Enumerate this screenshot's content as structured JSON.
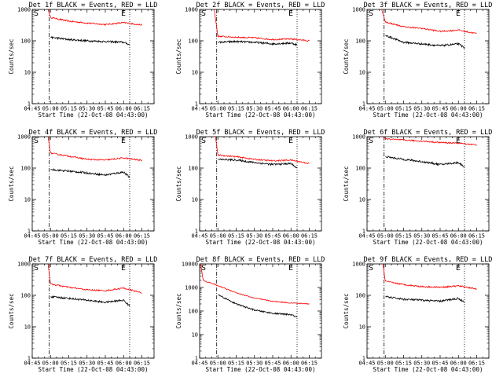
{
  "figure": {
    "colors": {
      "events": "#000000",
      "lld": "#ff0000",
      "axes": "#000000",
      "background": "#ffffff"
    }
  },
  "chart_data": [
    {
      "type": "line",
      "title": "Det 1f BLACK = Events, RED = LLD",
      "xlabel": "Start Time (22-Oct-08 04:43:00)",
      "ylabel": "Counts/sec",
      "ylim": [
        1,
        1000
      ],
      "y_scale": "log",
      "x_ticks": [
        "04:45",
        "05:00",
        "05:15",
        "05:30",
        "05:45",
        "06:00",
        "06:15"
      ],
      "y_ticks": [
        "1",
        "10",
        "100",
        "1000"
      ],
      "markers": {
        "start": "S",
        "end": "E",
        "start_time": "04:59",
        "end_time": "06:05"
      },
      "series": [
        {
          "name": "LLD",
          "color": "#ff0000",
          "x": [
            "04:58",
            "05:00",
            "05:15",
            "05:30",
            "05:45",
            "06:00",
            "06:15"
          ],
          "values": [
            1000,
            560,
            420,
            370,
            330,
            380,
            320
          ]
        },
        {
          "name": "Events",
          "color": "#000000",
          "x": [
            "05:00",
            "05:15",
            "05:30",
            "05:45",
            "06:00",
            "06:05"
          ],
          "values": [
            130,
            110,
            100,
            95,
            90,
            75
          ]
        }
      ]
    },
    {
      "type": "line",
      "title": "Det 2f BLACK = Events, RED = LLD",
      "xlabel": "Start Time (22-Oct-08 04:43:00)",
      "ylabel": "Counts/sec",
      "ylim": [
        1,
        1000
      ],
      "y_scale": "log",
      "x_ticks": [
        "04:45",
        "05:00",
        "05:15",
        "05:30",
        "05:45",
        "06:00",
        "06:15"
      ],
      "y_ticks": [
        "1",
        "10",
        "100",
        "1000"
      ],
      "markers": {
        "start": "S",
        "end": "E",
        "start_time": "04:59",
        "end_time": "06:05"
      },
      "series": [
        {
          "name": "LLD",
          "color": "#ff0000",
          "x": [
            "04:57",
            "05:00",
            "05:15",
            "05:30",
            "05:45",
            "06:00",
            "06:15"
          ],
          "values": [
            1000,
            140,
            130,
            125,
            110,
            115,
            100
          ]
        },
        {
          "name": "Events",
          "color": "#000000",
          "x": [
            "05:00",
            "05:15",
            "05:30",
            "05:45",
            "06:00",
            "06:05"
          ],
          "values": [
            90,
            95,
            90,
            80,
            85,
            75
          ]
        }
      ]
    },
    {
      "type": "line",
      "title": "Det 3f BLACK = Events, RED = LLD",
      "xlabel": "Start Time (22-Oct-08 04:43:00)",
      "ylabel": "Counts/sec",
      "ylim": [
        1,
        1000
      ],
      "y_scale": "log",
      "x_ticks": [
        "04:45",
        "05:00",
        "05:15",
        "05:30",
        "05:45",
        "06:00",
        "06:15"
      ],
      "y_ticks": [
        "1",
        "10",
        "100",
        "1000"
      ],
      "markers": {
        "start": "S",
        "end": "E",
        "start_time": "04:59",
        "end_time": "06:05"
      },
      "series": [
        {
          "name": "LLD",
          "color": "#ff0000",
          "x": [
            "04:57",
            "05:00",
            "05:15",
            "05:30",
            "05:45",
            "06:00",
            "06:15"
          ],
          "values": [
            1000,
            400,
            280,
            250,
            200,
            220,
            170
          ]
        },
        {
          "name": "Events",
          "color": "#000000",
          "x": [
            "05:00",
            "05:15",
            "05:30",
            "05:45",
            "06:00",
            "06:05"
          ],
          "values": [
            150,
            90,
            80,
            70,
            80,
            60
          ]
        }
      ]
    },
    {
      "type": "line",
      "title": "Det 4f BLACK = Events, RED = LLD",
      "xlabel": "Start Time (22-Oct-08 04:43:00)",
      "ylabel": "Counts/sec",
      "ylim": [
        1,
        1000
      ],
      "y_scale": "log",
      "x_ticks": [
        "04:45",
        "05:00",
        "05:15",
        "05:30",
        "05:45",
        "06:00",
        "06:15"
      ],
      "y_ticks": [
        "1",
        "10",
        "100",
        "1000"
      ],
      "markers": {
        "start": "S",
        "end": "E",
        "start_time": "04:59",
        "end_time": "06:05"
      },
      "series": [
        {
          "name": "LLD",
          "color": "#ff0000",
          "x": [
            "04:58",
            "05:00",
            "05:15",
            "05:30",
            "05:45",
            "06:00",
            "06:15"
          ],
          "values": [
            1000,
            300,
            240,
            190,
            180,
            210,
            175
          ]
        },
        {
          "name": "Events",
          "color": "#000000",
          "x": [
            "05:00",
            "05:15",
            "05:30",
            "05:45",
            "06:00",
            "06:05"
          ],
          "values": [
            90,
            80,
            70,
            60,
            75,
            50
          ]
        }
      ]
    },
    {
      "type": "line",
      "title": "Det 5f BLACK = Events, RED = LLD",
      "xlabel": "Start Time (22-Oct-08 04:43:00)",
      "ylabel": "Counts/sec",
      "ylim": [
        1,
        1000
      ],
      "y_scale": "log",
      "x_ticks": [
        "04:45",
        "05:00",
        "05:15",
        "05:30",
        "05:45",
        "06:00",
        "06:15"
      ],
      "y_ticks": [
        "1",
        "10",
        "100",
        "1000"
      ],
      "markers": {
        "start": "S",
        "end": "E",
        "start_time": "04:59",
        "end_time": "06:05"
      },
      "series": [
        {
          "name": "LLD",
          "color": "#ff0000",
          "x": [
            "04:58",
            "05:00",
            "05:15",
            "05:30",
            "05:45",
            "06:00",
            "06:15"
          ],
          "values": [
            1000,
            260,
            230,
            190,
            170,
            180,
            140
          ]
        },
        {
          "name": "Events",
          "color": "#000000",
          "x": [
            "05:00",
            "05:15",
            "05:30",
            "05:45",
            "06:00",
            "06:05"
          ],
          "values": [
            190,
            180,
            150,
            130,
            140,
            100
          ]
        }
      ]
    },
    {
      "type": "line",
      "title": "Det 6f BLACK = Events, RED = LLD",
      "xlabel": "Start Time (22-Oct-08 04:43:00)",
      "ylabel": "Counts/sec",
      "ylim": [
        1,
        1000
      ],
      "y_scale": "log",
      "x_ticks": [
        "04:45",
        "05:00",
        "05:15",
        "05:30",
        "05:45",
        "06:00",
        "06:15"
      ],
      "y_ticks": [
        "1",
        "10",
        "100",
        "1000"
      ],
      "markers": {
        "start": "S",
        "end": "E",
        "start_time": "04:59",
        "end_time": "06:05"
      },
      "series": [
        {
          "name": "LLD",
          "color": "#ff0000",
          "x": [
            "04:58",
            "05:00",
            "05:15",
            "05:30",
            "05:45",
            "06:00",
            "06:15"
          ],
          "values": [
            1000,
            850,
            780,
            720,
            650,
            620,
            550
          ]
        },
        {
          "name": "Events",
          "color": "#000000",
          "x": [
            "05:00",
            "05:15",
            "05:30",
            "05:45",
            "06:00",
            "06:05"
          ],
          "values": [
            230,
            190,
            160,
            130,
            150,
            110
          ]
        }
      ]
    },
    {
      "type": "line",
      "title": "Det 7f BLACK = Events, RED = LLD",
      "xlabel": "Start Time (22-Oct-08 04:43:00)",
      "ylabel": "Counts/sec",
      "ylim": [
        1,
        1000
      ],
      "y_scale": "log",
      "x_ticks": [
        "04:45",
        "05:00",
        "05:15",
        "05:30",
        "05:45",
        "06:00",
        "06:15"
      ],
      "y_ticks": [
        "1",
        "10",
        "100",
        "1000"
      ],
      "markers": {
        "start": "S",
        "end": "E",
        "start_time": "04:59",
        "end_time": "06:05"
      },
      "series": [
        {
          "name": "LLD",
          "color": "#ff0000",
          "x": [
            "04:58",
            "05:00",
            "05:15",
            "05:30",
            "05:45",
            "06:00",
            "06:15"
          ],
          "values": [
            1000,
            230,
            180,
            150,
            140,
            170,
            120
          ]
        },
        {
          "name": "Events",
          "color": "#000000",
          "x": [
            "05:00",
            "05:15",
            "05:30",
            "05:45",
            "06:00",
            "06:05"
          ],
          "values": [
            90,
            80,
            70,
            60,
            70,
            45
          ]
        }
      ]
    },
    {
      "type": "line",
      "title": "Det 8f BLACK = Events, RED = LLD",
      "xlabel": "Start Time (22-Oct-08 04:43:00)",
      "ylabel": "Counts/sec",
      "ylim": [
        1,
        10000
      ],
      "y_scale": "log",
      "x_ticks": [
        "04:45",
        "05:00",
        "05:15",
        "05:30",
        "05:45",
        "06:00",
        "06:15"
      ],
      "y_ticks": [
        "1",
        "10",
        "100",
        "1000",
        "10000"
      ],
      "markers": {
        "start": "S",
        "end": "E",
        "start_time": "04:59",
        "end_time": "06:05"
      },
      "series": [
        {
          "name": "LLD",
          "color": "#ff0000",
          "x": [
            "04:46",
            "04:47",
            "04:48",
            "05:00",
            "05:15",
            "05:30",
            "05:45",
            "06:00",
            "06:15"
          ],
          "values": [
            10000,
            4000,
            2000,
            1200,
            600,
            350,
            260,
            220,
            200
          ]
        },
        {
          "name": "Events",
          "color": "#000000",
          "x": [
            "05:00",
            "05:15",
            "05:30",
            "05:45",
            "06:00",
            "06:05"
          ],
          "values": [
            500,
            200,
            110,
            80,
            70,
            55
          ]
        }
      ]
    },
    {
      "type": "line",
      "title": "Det 9f BLACK = Events, RED = LLD",
      "xlabel": "Start Time (22-Oct-08 04:43:00)",
      "ylabel": "Counts/sec",
      "ylim": [
        1,
        1000
      ],
      "y_scale": "log",
      "x_ticks": [
        "04:45",
        "05:00",
        "05:15",
        "05:30",
        "05:45",
        "06:00",
        "06:15"
      ],
      "y_ticks": [
        "1",
        "10",
        "100",
        "1000"
      ],
      "markers": {
        "start": "S",
        "end": "E",
        "start_time": "04:59",
        "end_time": "06:05"
      },
      "series": [
        {
          "name": "LLD",
          "color": "#ff0000",
          "x": [
            "04:58",
            "05:00",
            "05:15",
            "05:30",
            "05:45",
            "06:00",
            "06:15"
          ],
          "values": [
            1000,
            280,
            220,
            190,
            180,
            200,
            160
          ]
        },
        {
          "name": "Events",
          "color": "#000000",
          "x": [
            "05:00",
            "05:15",
            "05:30",
            "05:45",
            "06:00",
            "06:05"
          ],
          "values": [
            90,
            75,
            70,
            65,
            80,
            60
          ]
        }
      ]
    }
  ]
}
